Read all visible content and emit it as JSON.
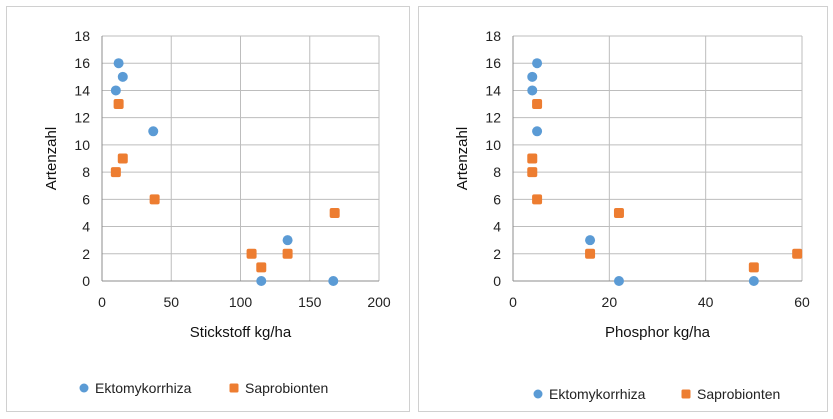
{
  "chart_data": [
    {
      "type": "scatter",
      "title": "",
      "xlabel": "Stickstoff kg/ha",
      "ylabel": "Artenzahl",
      "xlim": [
        0,
        200
      ],
      "ylim": [
        0,
        18
      ],
      "xticks": [
        0,
        50,
        100,
        150,
        200
      ],
      "yticks": [
        0,
        2,
        4,
        6,
        8,
        10,
        12,
        14,
        16,
        18
      ],
      "grid": true,
      "legend_position": "bottom",
      "series": [
        {
          "name": "Ektomykorrhiza",
          "color": "#5B9BD5",
          "points": [
            [
              12,
              16
            ],
            [
              15,
              15
            ],
            [
              10,
              14
            ],
            [
              37,
              11
            ],
            [
              134,
              3
            ],
            [
              115,
              0
            ],
            [
              167,
              0
            ]
          ]
        },
        {
          "name": "Saprobionten",
          "color": "#ED7D31",
          "points": [
            [
              12,
              13
            ],
            [
              15,
              9
            ],
            [
              10,
              8
            ],
            [
              38,
              6
            ],
            [
              168,
              5
            ],
            [
              108,
              2
            ],
            [
              134,
              2
            ],
            [
              115,
              1
            ]
          ]
        }
      ]
    },
    {
      "type": "scatter",
      "title": "",
      "xlabel": "Phosphor kg/ha",
      "ylabel": "Artenzahl",
      "xlim": [
        0,
        60
      ],
      "ylim": [
        0,
        18
      ],
      "xticks": [
        0,
        20,
        40,
        60
      ],
      "yticks": [
        0,
        2,
        4,
        6,
        8,
        10,
        12,
        14,
        16,
        18
      ],
      "grid": true,
      "legend_position": "bottom",
      "series": [
        {
          "name": "Ektomykorrhiza",
          "color": "#5B9BD5",
          "points": [
            [
              5,
              16
            ],
            [
              4,
              15
            ],
            [
              4,
              14
            ],
            [
              5,
              11
            ],
            [
              16,
              3
            ],
            [
              22,
              0
            ],
            [
              50,
              0
            ]
          ]
        },
        {
          "name": "Saprobionten",
          "color": "#ED7D31",
          "points": [
            [
              5,
              13
            ],
            [
              4,
              9
            ],
            [
              4,
              8
            ],
            [
              5,
              6
            ],
            [
              22,
              5
            ],
            [
              16,
              2
            ],
            [
              59,
              2
            ],
            [
              50,
              1
            ]
          ]
        }
      ]
    }
  ]
}
